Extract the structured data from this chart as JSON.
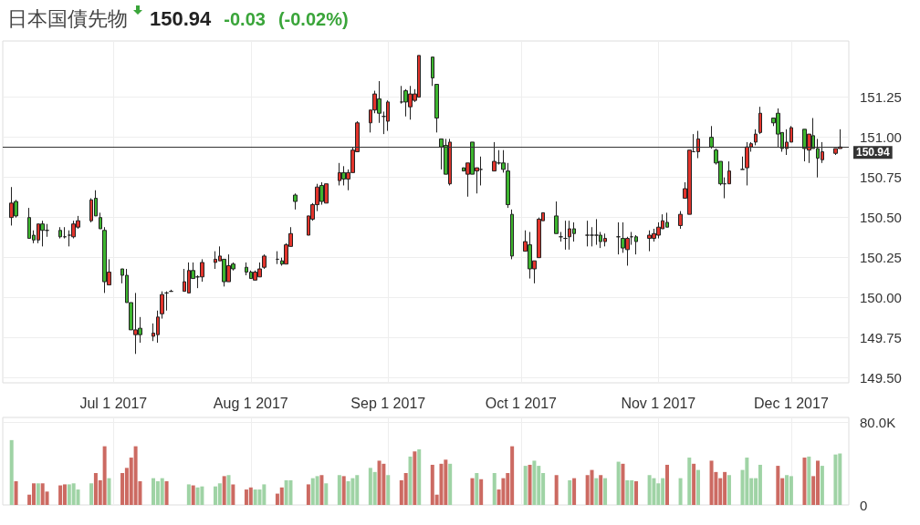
{
  "chart_data": [
    {
      "type": "candlestick",
      "title": "日本国債先物",
      "annotations": [
        "150.94",
        "-0.03",
        "(-0.02%)"
      ],
      "x": [
        "2017-06-08",
        "2017-06-09",
        "2017-06-12",
        "2017-06-13",
        "2017-06-14",
        "2017-06-15",
        "2017-06-16",
        "2017-06-19",
        "2017-06-20",
        "2017-06-21",
        "2017-06-22",
        "2017-06-23",
        "2017-06-26",
        "2017-06-27",
        "2017-06-28",
        "2017-06-29",
        "2017-06-30",
        "2017-07-03",
        "2017-07-04",
        "2017-07-05",
        "2017-07-06",
        "2017-07-07",
        "2017-07-10",
        "2017-07-11",
        "2017-07-12",
        "2017-07-13",
        "2017-07-14",
        "2017-07-17",
        "2017-07-18",
        "2017-07-19",
        "2017-07-20",
        "2017-07-21",
        "2017-07-24",
        "2017-07-25",
        "2017-07-26",
        "2017-07-27",
        "2017-07-28",
        "2017-07-31",
        "2017-08-01",
        "2017-08-02",
        "2017-08-03",
        "2017-08-04",
        "2017-08-07",
        "2017-08-08",
        "2017-08-09",
        "2017-08-10",
        "2017-08-11",
        "2017-08-14",
        "2017-08-15",
        "2017-08-16",
        "2017-08-17",
        "2017-08-18",
        "2017-08-21",
        "2017-08-22",
        "2017-08-23",
        "2017-08-24",
        "2017-08-25",
        "2017-08-28",
        "2017-08-29",
        "2017-08-30",
        "2017-08-31",
        "2017-09-01",
        "2017-09-04",
        "2017-09-05",
        "2017-09-06",
        "2017-09-07",
        "2017-09-08",
        "2017-09-11",
        "2017-09-12",
        "2017-09-13",
        "2017-09-14",
        "2017-09-15",
        "2017-09-18",
        "2017-09-19",
        "2017-09-20",
        "2017-09-21",
        "2017-09-22",
        "2017-09-25",
        "2017-09-26",
        "2017-09-27",
        "2017-09-28",
        "2017-09-29",
        "2017-10-02",
        "2017-10-03",
        "2017-10-04",
        "2017-10-05",
        "2017-10-06",
        "2017-10-09",
        "2017-10-10",
        "2017-10-11",
        "2017-10-12",
        "2017-10-13",
        "2017-10-16",
        "2017-10-17",
        "2017-10-18",
        "2017-10-19",
        "2017-10-20",
        "2017-10-23",
        "2017-10-24",
        "2017-10-25",
        "2017-10-26",
        "2017-10-27",
        "2017-10-30",
        "2017-10-31",
        "2017-11-01",
        "2017-11-02",
        "2017-11-03",
        "2017-11-06",
        "2017-11-07",
        "2017-11-08",
        "2017-11-09",
        "2017-11-10",
        "2017-11-13",
        "2017-11-14",
        "2017-11-15",
        "2017-11-16",
        "2017-11-17",
        "2017-11-20",
        "2017-11-21",
        "2017-11-22",
        "2017-11-23",
        "2017-11-24",
        "2017-11-27",
        "2017-11-28",
        "2017-11-29",
        "2017-11-30",
        "2017-12-01",
        "2017-12-04",
        "2017-12-05",
        "2017-12-06",
        "2017-12-07",
        "2017-12-08",
        "2017-12-11",
        "2017-12-12"
      ],
      "ohlc": [
        [
          150.5,
          150.69,
          150.45,
          150.59
        ],
        [
          150.6,
          150.61,
          150.5,
          150.51
        ],
        [
          150.5,
          150.56,
          150.37,
          150.37
        ],
        [
          150.39,
          150.42,
          150.34,
          150.36
        ],
        [
          150.36,
          150.46,
          150.34,
          150.46
        ],
        [
          150.46,
          150.48,
          150.32,
          150.42
        ],
        [
          150.42,
          150.46,
          150.38,
          150.42
        ],
        [
          150.42,
          150.44,
          150.37,
          150.38
        ],
        [
          150.38,
          150.44,
          150.37,
          150.38
        ],
        [
          150.39,
          150.42,
          150.32,
          150.39
        ],
        [
          150.38,
          150.48,
          150.37,
          150.46
        ],
        [
          150.44,
          150.51,
          150.43,
          150.48
        ],
        [
          150.48,
          150.62,
          150.47,
          150.61
        ],
        [
          150.62,
          150.67,
          150.51,
          150.51
        ],
        [
          150.5,
          150.53,
          150.43,
          150.43
        ],
        [
          150.42,
          150.44,
          150.03,
          150.1
        ],
        [
          150.08,
          150.24,
          150.08,
          150.16
        ],
        [
          150.18,
          150.18,
          150.09,
          150.14
        ],
        [
          150.14,
          150.18,
          149.97,
          149.97
        ],
        [
          149.97,
          149.97,
          149.8,
          149.8
        ],
        [
          149.77,
          150.03,
          149.65,
          149.8
        ],
        [
          149.81,
          149.88,
          149.72,
          149.77
        ],
        [
          149.76,
          149.84,
          149.73,
          149.78
        ],
        [
          149.77,
          149.92,
          149.72,
          149.88
        ],
        [
          149.9,
          150.04,
          149.87,
          150.02
        ],
        [
          150.03,
          150.04,
          149.92,
          150.03
        ],
        [
          150.04,
          150.05,
          150.04,
          150.04
        ],
        [
          150.04,
          150.18,
          150.04,
          150.1
        ],
        [
          150.03,
          150.22,
          150.03,
          150.17
        ],
        [
          150.17,
          150.22,
          150.12,
          150.12
        ],
        [
          150.13,
          150.14,
          150.06,
          150.13
        ],
        [
          150.13,
          150.24,
          150.1,
          150.22
        ],
        [
          150.22,
          150.29,
          150.18,
          150.24
        ],
        [
          150.23,
          150.32,
          150.23,
          150.26
        ],
        [
          150.24,
          150.24,
          150.07,
          150.1
        ],
        [
          150.1,
          150.27,
          150.1,
          150.2
        ],
        [
          150.21,
          150.22,
          150.17,
          150.18
        ],
        [
          150.19,
          150.22,
          150.14,
          150.16
        ],
        [
          150.16,
          150.17,
          150.12,
          150.12
        ],
        [
          150.11,
          150.17,
          150.11,
          150.16
        ],
        [
          150.13,
          150.22,
          150.13,
          150.18
        ],
        [
          150.19,
          150.27,
          150.18,
          150.26
        ],
        [
          150.24,
          150.29,
          150.21,
          150.24
        ],
        [
          150.23,
          150.25,
          150.2,
          150.21
        ],
        [
          150.21,
          150.34,
          150.21,
          150.33
        ],
        [
          150.32,
          150.44,
          150.32,
          150.4
        ],
        [
          150.64,
          150.65,
          150.55,
          150.6
        ],
        [
          150.39,
          150.51,
          150.39,
          150.51
        ],
        [
          150.49,
          150.59,
          150.48,
          150.58
        ],
        [
          150.58,
          150.71,
          150.54,
          150.69
        ],
        [
          150.7,
          150.72,
          150.58,
          150.6
        ],
        [
          150.59,
          150.71,
          150.59,
          150.71
        ],
        [
          150.73,
          150.84,
          150.7,
          150.78
        ],
        [
          150.78,
          150.82,
          150.7,
          150.74
        ],
        [
          150.74,
          150.8,
          150.67,
          150.78
        ],
        [
          150.78,
          150.94,
          150.78,
          150.92
        ],
        [
          150.91,
          151.1,
          150.91,
          151.09
        ],
        [
          151.09,
          151.17,
          151.03,
          151.17
        ],
        [
          151.17,
          151.29,
          151.15,
          151.27
        ],
        [
          151.24,
          151.35,
          151.09,
          151.15
        ],
        [
          151.13,
          151.16,
          151.02,
          151.13
        ],
        [
          151.1,
          151.23,
          151.04,
          151.22
        ],
        [
          151.22,
          151.32,
          151.21,
          151.22
        ],
        [
          151.29,
          151.3,
          151.13,
          151.22
        ],
        [
          151.19,
          151.32,
          151.11,
          151.27
        ],
        [
          151.23,
          151.3,
          151.22,
          151.27
        ],
        [
          151.25,
          151.51,
          151.25,
          151.51
        ],
        [
          151.5,
          151.5,
          151.32,
          151.37
        ],
        [
          151.33,
          151.33,
          151.03,
          151.12
        ],
        [
          150.99,
          150.99,
          150.8,
          150.94
        ],
        [
          150.95,
          150.99,
          150.77,
          150.77
        ],
        [
          150.71,
          150.99,
          150.7,
          150.97
        ],
        [
          150.81,
          150.81,
          150.79,
          150.79
        ],
        [
          150.77,
          150.84,
          150.63,
          150.84
        ],
        [
          150.97,
          150.97,
          150.77,
          150.77
        ],
        [
          150.79,
          150.81,
          150.65,
          150.81
        ],
        [
          150.8,
          150.88,
          150.7,
          150.8
        ],
        [
          150.79,
          150.97,
          150.79,
          150.85
        ],
        [
          150.84,
          150.92,
          150.83,
          150.84
        ],
        [
          150.84,
          150.92,
          150.78,
          150.8
        ],
        [
          150.79,
          150.84,
          150.56,
          150.58
        ],
        [
          150.52,
          150.55,
          150.24,
          150.26
        ],
        [
          150.29,
          150.42,
          150.29,
          150.35
        ],
        [
          150.33,
          150.41,
          150.12,
          150.18
        ],
        [
          150.18,
          150.23,
          150.09,
          150.23
        ],
        [
          150.25,
          150.5,
          150.25,
          150.49
        ],
        [
          150.48,
          150.53,
          150.48,
          150.53
        ],
        [
          150.51,
          150.6,
          150.4,
          150.4
        ],
        [
          150.38,
          150.41,
          150.35,
          150.38
        ],
        [
          150.37,
          150.48,
          150.3,
          150.37
        ],
        [
          150.38,
          150.48,
          150.3,
          150.43
        ],
        [
          150.43,
          150.47,
          150.35,
          150.4
        ],
        [
          150.39,
          150.48,
          150.32,
          150.39
        ],
        [
          150.39,
          150.44,
          150.32,
          150.39
        ],
        [
          150.39,
          150.49,
          150.33,
          150.39
        ],
        [
          150.39,
          150.41,
          150.31,
          150.35
        ],
        [
          150.35,
          150.4,
          150.32,
          150.37
        ],
        [
          150.38,
          150.47,
          150.27,
          150.38
        ],
        [
          150.37,
          150.47,
          150.28,
          150.31
        ],
        [
          150.3,
          150.38,
          150.2,
          150.37
        ],
        [
          150.38,
          150.41,
          150.33,
          150.38
        ],
        [
          150.38,
          150.39,
          150.27,
          150.35
        ],
        [
          150.37,
          150.42,
          150.29,
          150.39
        ],
        [
          150.37,
          150.43,
          150.35,
          150.4
        ],
        [
          150.39,
          150.47,
          150.37,
          150.44
        ],
        [
          150.43,
          150.52,
          150.43,
          150.48
        ],
        [
          150.47,
          150.53,
          150.44,
          150.44
        ],
        [
          150.45,
          150.54,
          150.43,
          150.52
        ],
        [
          150.62,
          150.72,
          150.62,
          150.68
        ],
        [
          150.52,
          150.92,
          150.52,
          150.92
        ],
        [
          150.91,
          151.02,
          150.91,
          150.91
        ],
        [
          150.91,
          151.04,
          150.87,
          150.99
        ],
        [
          151.0,
          151.07,
          150.93,
          150.94
        ],
        [
          150.92,
          150.93,
          150.83,
          150.84
        ],
        [
          150.85,
          150.85,
          150.7,
          150.71
        ],
        [
          150.71,
          150.75,
          150.62,
          150.71
        ],
        [
          150.71,
          150.85,
          150.71,
          150.79
        ],
        [
          150.8,
          150.88,
          150.8,
          150.8
        ],
        [
          150.81,
          150.97,
          150.7,
          150.94
        ],
        [
          150.94,
          150.97,
          150.91,
          150.96
        ],
        [
          150.97,
          151.05,
          150.95,
          151.02
        ],
        [
          151.03,
          151.19,
          151.02,
          151.15
        ],
        [
          151.12,
          151.12,
          151.07,
          151.09
        ],
        [
          151.15,
          151.18,
          150.94,
          151.02
        ],
        [
          151.03,
          151.03,
          150.91,
          150.93
        ],
        [
          150.93,
          151.05,
          150.89,
          150.97
        ],
        [
          150.97,
          151.07,
          150.97,
          151.06
        ],
        [
          151.05,
          151.05,
          150.85,
          150.93
        ],
        [
          150.92,
          151.02,
          150.84,
          151.02
        ],
        [
          151.01,
          151.12,
          150.93,
          150.93
        ],
        [
          150.93,
          150.99,
          150.75,
          150.87
        ],
        [
          150.86,
          150.97,
          150.84,
          150.91
        ],
        [
          150.9,
          150.93,
          150.89,
          150.93
        ],
        [
          150.93,
          151.05,
          150.93,
          150.94
        ]
      ],
      "colors": [
        "#e2342c",
        "#3db52f",
        "#3db52f",
        "#3db52f",
        "#e2342c",
        "#3db52f",
        "#222222",
        "#3db52f",
        "#222222",
        "#222222",
        "#e2342c",
        "#e2342c",
        "#e2342c",
        "#3db52f",
        "#3db52f",
        "#3db52f",
        "#e2342c",
        "#3db52f",
        "#3db52f",
        "#3db52f",
        "#e2342c",
        "#3db52f",
        "#e2342c",
        "#e2342c",
        "#e2342c",
        "#222222",
        "#222222",
        "#e2342c",
        "#e2342c",
        "#3db52f",
        "#222222",
        "#e2342c",
        "#e2342c",
        "#e2342c",
        "#3db52f",
        "#e2342c",
        "#3db52f",
        "#3db52f",
        "#3db52f",
        "#e2342c",
        "#e2342c",
        "#e2342c",
        "#222222",
        "#3db52f",
        "#e2342c",
        "#e2342c",
        "#3db52f",
        "#e2342c",
        "#e2342c",
        "#e2342c",
        "#3db52f",
        "#e2342c",
        "#e2342c",
        "#3db52f",
        "#e2342c",
        "#e2342c",
        "#e2342c",
        "#e2342c",
        "#e2342c",
        "#3db52f",
        "#222222",
        "#e2342c",
        "#222222",
        "#3db52f",
        "#e2342c",
        "#e2342c",
        "#e2342c",
        "#3db52f",
        "#3db52f",
        "#3db52f",
        "#3db52f",
        "#e2342c",
        "#3db52f",
        "#e2342c",
        "#3db52f",
        "#e2342c",
        "#222222",
        "#e2342c",
        "#222222",
        "#3db52f",
        "#3db52f",
        "#3db52f",
        "#e2342c",
        "#3db52f",
        "#e2342c",
        "#e2342c",
        "#e2342c",
        "#3db52f",
        "#222222",
        "#222222",
        "#e2342c",
        "#3db52f",
        "#222222",
        "#222222",
        "#222222",
        "#3db52f",
        "#e2342c",
        "#222222",
        "#3db52f",
        "#e2342c",
        "#222222",
        "#3db52f",
        "#e2342c",
        "#e2342c",
        "#e2342c",
        "#e2342c",
        "#3db52f",
        "#e2342c",
        "#e2342c",
        "#e2342c",
        "#222222",
        "#e2342c",
        "#3db52f",
        "#3db52f",
        "#3db52f",
        "#222222",
        "#e2342c",
        "#222222",
        "#e2342c",
        "#e2342c",
        "#e2342c",
        "#e2342c",
        "#3db52f",
        "#3db52f",
        "#3db52f",
        "#e2342c",
        "#e2342c",
        "#3db52f",
        "#e2342c",
        "#3db52f",
        "#3db52f",
        "#e2342c",
        "#e2342c",
        "#e2342c"
      ],
      "xlim": [
        "2017-06-06",
        "2017-12-14"
      ],
      "xticks": [
        {
          "value": "2017-07-01",
          "label": "Jul 1 2017"
        },
        {
          "value": "2017-08-01",
          "label": "Aug 1 2017"
        },
        {
          "value": "2017-09-01",
          "label": "Sep 1 2017"
        },
        {
          "value": "2017-10-01",
          "label": "Oct 1 2017"
        },
        {
          "value": "2017-11-01",
          "label": "Nov 1 2017"
        },
        {
          "value": "2017-12-01",
          "label": "Dec 1 2017"
        }
      ],
      "ylim": [
        149.47,
        151.6
      ],
      "yticks": [
        {
          "value": 149.5,
          "label": "149.50"
        },
        {
          "value": 149.75,
          "label": "149.75"
        },
        {
          "value": 150,
          "label": "150.00"
        },
        {
          "value": 150.25,
          "label": "150.25"
        },
        {
          "value": 150.5,
          "label": "150.50"
        },
        {
          "value": 150.75,
          "label": "150.75"
        },
        {
          "value": 151,
          "label": "151.00"
        },
        {
          "value": 151.25,
          "label": "151.25"
        }
      ],
      "ref_lines": [
        {
          "axis": "y",
          "value": 150.94,
          "label": "150.94",
          "color": "#333333"
        }
      ],
      "grid": true
    },
    {
      "type": "bar",
      "stacked": true,
      "tick_labels": "y",
      "grid": true,
      "x": [
        "2017-06-08",
        "2017-06-09",
        "2017-06-12",
        "2017-06-13",
        "2017-06-14",
        "2017-06-15",
        "2017-06-16",
        "2017-06-19",
        "2017-06-20",
        "2017-06-21",
        "2017-06-22",
        "2017-06-23",
        "2017-06-26",
        "2017-06-27",
        "2017-06-28",
        "2017-06-29",
        "2017-06-30",
        "2017-07-03",
        "2017-07-04",
        "2017-07-05",
        "2017-07-06",
        "2017-07-07",
        "2017-07-10",
        "2017-07-11",
        "2017-07-12",
        "2017-07-13",
        "2017-07-14",
        "2017-07-17",
        "2017-07-18",
        "2017-07-19",
        "2017-07-20",
        "2017-07-21",
        "2017-07-24",
        "2017-07-25",
        "2017-07-26",
        "2017-07-27",
        "2017-07-28",
        "2017-07-31",
        "2017-08-01",
        "2017-08-02",
        "2017-08-03",
        "2017-08-04",
        "2017-08-07",
        "2017-08-08",
        "2017-08-09",
        "2017-08-10",
        "2017-08-11",
        "2017-08-14",
        "2017-08-15",
        "2017-08-16",
        "2017-08-17",
        "2017-08-18",
        "2017-08-21",
        "2017-08-22",
        "2017-08-23",
        "2017-08-24",
        "2017-08-25",
        "2017-08-28",
        "2017-08-29",
        "2017-08-30",
        "2017-08-31",
        "2017-09-01",
        "2017-09-04",
        "2017-09-05",
        "2017-09-06",
        "2017-09-07",
        "2017-09-08",
        "2017-09-11",
        "2017-09-12",
        "2017-09-13",
        "2017-09-14",
        "2017-09-15",
        "2017-09-18",
        "2017-09-19",
        "2017-09-20",
        "2017-09-21",
        "2017-09-22",
        "2017-09-25",
        "2017-09-26",
        "2017-09-27",
        "2017-09-28",
        "2017-09-29",
        "2017-10-02",
        "2017-10-03",
        "2017-10-04",
        "2017-10-05",
        "2017-10-06",
        "2017-10-09",
        "2017-10-10",
        "2017-10-11",
        "2017-10-12",
        "2017-10-13",
        "2017-10-16",
        "2017-10-17",
        "2017-10-18",
        "2017-10-19",
        "2017-10-20",
        "2017-10-23",
        "2017-10-24",
        "2017-10-25",
        "2017-10-26",
        "2017-10-27",
        "2017-10-30",
        "2017-10-31",
        "2017-11-01",
        "2017-11-02",
        "2017-11-03",
        "2017-11-06",
        "2017-11-07",
        "2017-11-08",
        "2017-11-09",
        "2017-11-10",
        "2017-11-13",
        "2017-11-14",
        "2017-11-15",
        "2017-11-16",
        "2017-11-17",
        "2017-11-20",
        "2017-11-21",
        "2017-11-22",
        "2017-11-23",
        "2017-11-24",
        "2017-11-27",
        "2017-11-28",
        "2017-11-29",
        "2017-11-30",
        "2017-12-01",
        "2017-12-04",
        "2017-12-05",
        "2017-12-06",
        "2017-12-07",
        "2017-12-08",
        "2017-12-11",
        "2017-12-12"
      ],
      "series": [
        {
          "color": "#9fd3a5",
          "values": [
            63000,
            null,
            null,
            null,
            21000,
            null,
            null,
            null,
            null,
            20000,
            21000,
            15000,
            21000,
            null,
            null,
            null,
            26000,
            null,
            null,
            null,
            null,
            null,
            26000,
            23000,
            26000,
            null,
            null,
            null,
            20000,
            null,
            17000,
            18000,
            18000,
            21000,
            null,
            29000,
            null,
            null,
            null,
            15000,
            15000,
            20000,
            null,
            null,
            24000,
            24000,
            null,
            null,
            26000,
            28000,
            null,
            21000,
            29000,
            null,
            23000,
            26000,
            29000,
            36000,
            32000,
            null,
            null,
            29000,
            null,
            null,
            47000,
            null,
            54000,
            null,
            null,
            null,
            null,
            40000,
            null,
            null,
            null,
            31000,
            null,
            31000,
            null,
            null,
            null,
            null,
            38000,
            null,
            43000,
            38000,
            31000,
            null,
            null,
            null,
            24000,
            null,
            null,
            null,
            26000,
            null,
            26000,
            42000,
            null,
            24000,
            24000,
            null,
            29000,
            26000,
            21000,
            26000,
            null,
            26000,
            null,
            46000,
            null,
            34000,
            null,
            null,
            null,
            null,
            29000,
            34000,
            46000,
            26000,
            26000,
            39000,
            null,
            null,
            null,
            29000,
            28000,
            null,
            47000,
            null,
            null,
            38000,
            49000,
            50000
          ]
        },
        {
          "color": "#cc6a62",
          "values": [
            null,
            23000,
            10000,
            21000,
            null,
            21000,
            13000,
            19000,
            20000,
            null,
            null,
            null,
            null,
            31000,
            24000,
            57000,
            null,
            31000,
            36000,
            46000,
            57000,
            23000,
            null,
            null,
            null,
            23000,
            null,
            null,
            null,
            19000,
            null,
            null,
            null,
            null,
            28000,
            null,
            20000,
            15000,
            17000,
            null,
            null,
            null,
            11000,
            17000,
            null,
            null,
            null,
            20000,
            null,
            null,
            29000,
            null,
            null,
            28000,
            null,
            null,
            null,
            null,
            null,
            43000,
            40000,
            null,
            24000,
            31000,
            null,
            52000,
            null,
            39000,
            10000,
            40000,
            44000,
            null,
            null,
            null,
            26000,
            null,
            25000,
            null,
            15000,
            26000,
            31000,
            57000,
            null,
            39000,
            null,
            null,
            null,
            29000,
            null,
            null,
            null,
            26000,
            29000,
            34000,
            null,
            29000,
            null,
            null,
            40000,
            null,
            null,
            23000,
            null,
            null,
            null,
            null,
            39000,
            null,
            null,
            null,
            40000,
            null,
            43000,
            32000,
            26000,
            32000,
            null,
            null,
            null,
            null,
            null,
            null,
            null,
            38000,
            26000,
            null,
            null,
            46000,
            null,
            28000,
            43000,
            null,
            null,
            null
          ]
        }
      ],
      "xlim": [
        "2017-06-06",
        "2017-12-14"
      ],
      "xticks": [
        {
          "value": "2017-07-01",
          "label": null
        },
        {
          "value": "2017-08-01",
          "label": null
        },
        {
          "value": "2017-09-01",
          "label": null
        },
        {
          "value": "2017-10-01",
          "label": null
        },
        {
          "value": "2017-11-01",
          "label": null
        },
        {
          "value": "2017-12-01",
          "label": null
        }
      ],
      "ylim": [
        0,
        85000
      ],
      "yticks": [
        0,
        {
          "value": 80000,
          "label": "80.0K"
        }
      ]
    }
  ]
}
